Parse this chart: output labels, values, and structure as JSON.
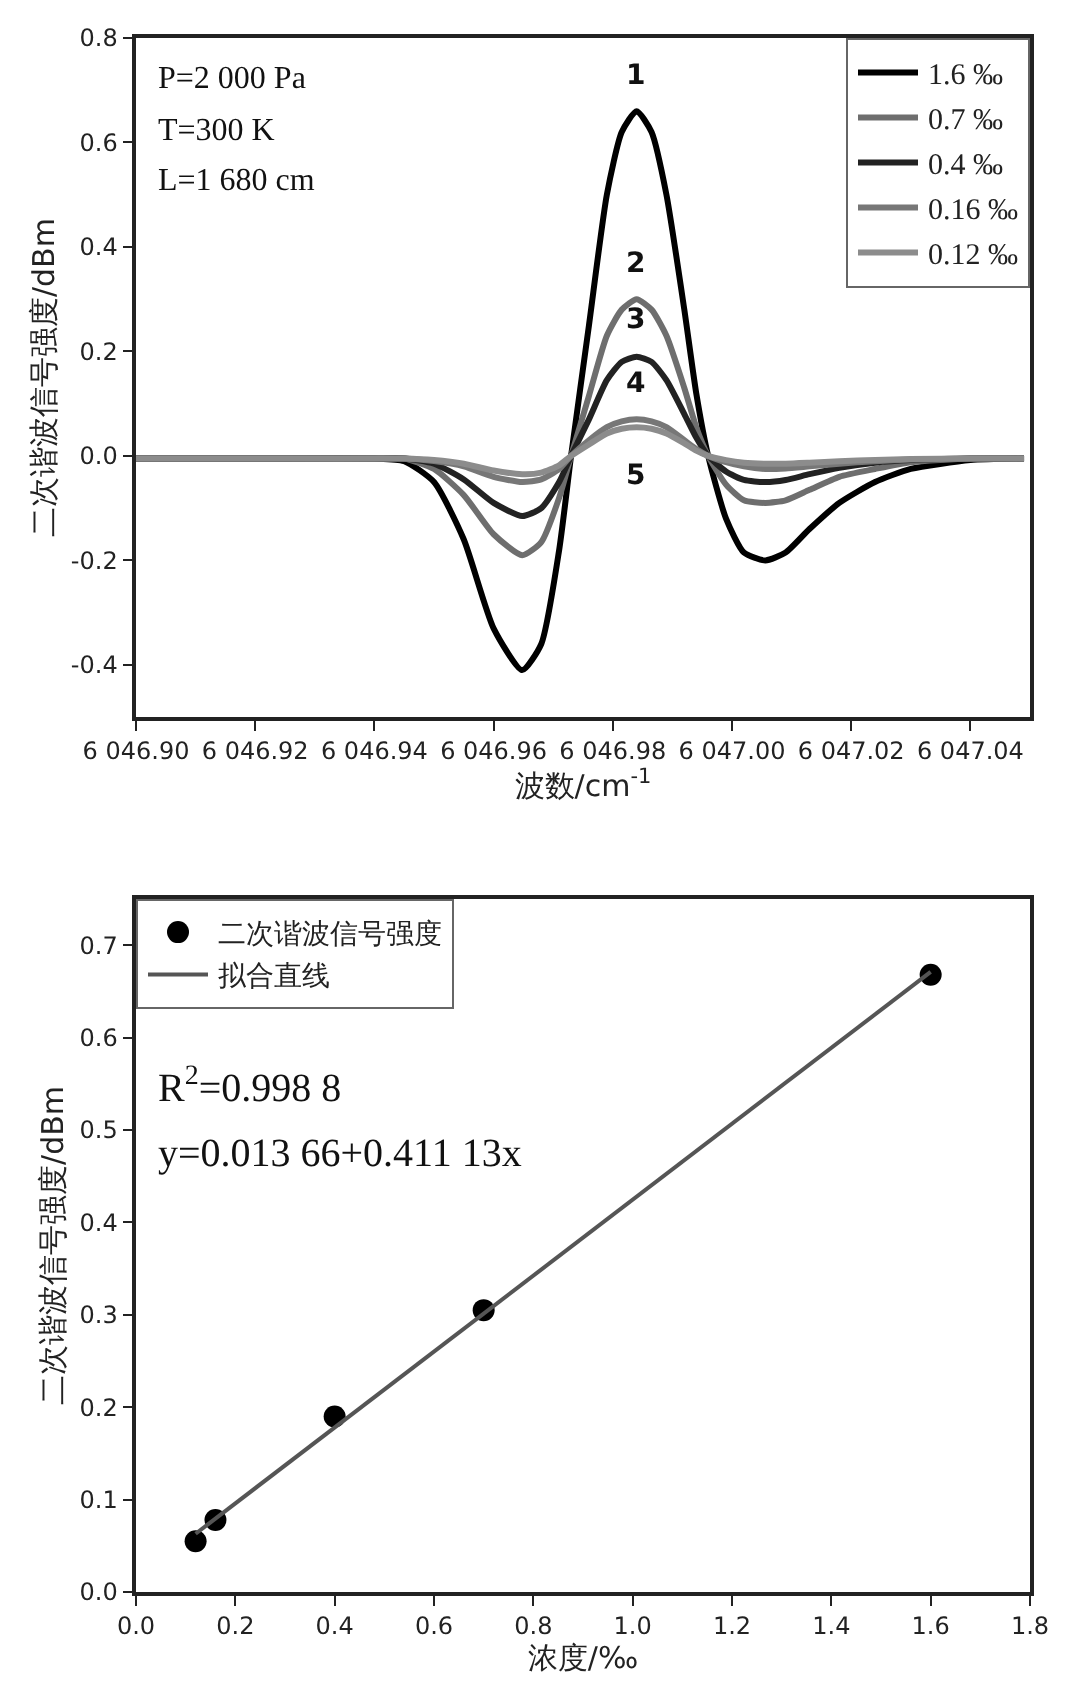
{
  "chart_data": [
    {
      "type": "line",
      "xlabel": "波数/cm$^{-1}$",
      "ylabel": "二次谐波信号强度/dBm",
      "x": [
        6046.9,
        6046.92,
        6046.94,
        6046.945,
        6046.95,
        6046.955,
        6046.96,
        6046.9648,
        6046.968,
        6046.971,
        6046.973,
        6046.976,
        6046.979,
        6046.9815,
        6046.984,
        6046.9865,
        6046.989,
        6046.992,
        6046.994,
        6046.996,
        6046.999,
        6047.002,
        6047.0056,
        6047.009,
        6047.013,
        6047.018,
        6047.024,
        6047.03,
        6047.04,
        6047.049
      ],
      "series": [
        {
          "name": "1.6 ‰",
          "color": "#000000",
          "values": [
            -0.005,
            -0.005,
            -0.005,
            -0.01,
            -0.05,
            -0.16,
            -0.33,
            -0.41,
            -0.36,
            -0.18,
            0,
            0.25,
            0.5,
            0.62,
            0.66,
            0.62,
            0.5,
            0.28,
            0.12,
            0,
            -0.12,
            -0.185,
            -0.2,
            -0.185,
            -0.14,
            -0.09,
            -0.05,
            -0.025,
            -0.008,
            -0.005
          ]
        },
        {
          "name": "0.7 ‰",
          "color": "#6e6e6e",
          "values": [
            -0.005,
            -0.005,
            -0.005,
            -0.005,
            -0.025,
            -0.075,
            -0.15,
            -0.19,
            -0.165,
            -0.08,
            0,
            0.115,
            0.23,
            0.28,
            0.3,
            0.28,
            0.23,
            0.13,
            0.055,
            0,
            -0.055,
            -0.085,
            -0.09,
            -0.085,
            -0.065,
            -0.04,
            -0.025,
            -0.012,
            -0.005,
            -0.005
          ]
        },
        {
          "name": "0.4 ‰",
          "color": "#222222",
          "values": [
            -0.005,
            -0.005,
            -0.005,
            -0.005,
            -0.015,
            -0.045,
            -0.09,
            -0.115,
            -0.1,
            -0.05,
            0,
            0.07,
            0.145,
            0.18,
            0.19,
            0.18,
            0.145,
            0.08,
            0.035,
            0,
            -0.03,
            -0.046,
            -0.05,
            -0.046,
            -0.035,
            -0.023,
            -0.013,
            -0.008,
            -0.005,
            -0.005
          ]
        },
        {
          "name": "0.16 ‰",
          "color": "#777777",
          "values": [
            -0.005,
            -0.005,
            -0.005,
            -0.005,
            -0.01,
            -0.02,
            -0.04,
            -0.05,
            -0.045,
            -0.025,
            0,
            0.03,
            0.055,
            0.066,
            0.07,
            0.066,
            0.055,
            0.03,
            0.013,
            0,
            -0.012,
            -0.02,
            -0.025,
            -0.024,
            -0.02,
            -0.015,
            -0.01,
            -0.007,
            -0.005,
            -0.005
          ]
        },
        {
          "name": "0.12 ‰",
          "color": "#8c8c8c",
          "values": [
            -0.005,
            -0.005,
            -0.005,
            -0.005,
            -0.008,
            -0.015,
            -0.028,
            -0.035,
            -0.032,
            -0.018,
            0,
            0.022,
            0.043,
            0.052,
            0.055,
            0.052,
            0.043,
            0.024,
            0.01,
            0,
            -0.008,
            -0.013,
            -0.015,
            -0.015,
            -0.013,
            -0.01,
            -0.008,
            -0.006,
            -0.005,
            -0.005
          ]
        }
      ],
      "xlim": [
        6046.9,
        6047.05
      ],
      "xticks": [
        {
          "value": 6046.9,
          "label": "6 046.90"
        },
        {
          "value": 6046.92,
          "label": "6 046.92"
        },
        {
          "value": 6046.94,
          "label": "6 046.94"
        },
        {
          "value": 6046.96,
          "label": "6 046.96"
        },
        {
          "value": 6046.98,
          "label": "6 046.98"
        },
        {
          "value": 6047.0,
          "label": "6 047.00"
        },
        {
          "value": 6047.02,
          "label": "6 047.02"
        },
        {
          "value": 6047.04,
          "label": "6 047.04"
        }
      ],
      "ylim": [
        -0.5,
        0.8
      ],
      "yticks": [
        {
          "value": -0.4,
          "label": "-0.4"
        },
        {
          "value": -0.2,
          "label": "-0.2"
        },
        {
          "value": 0,
          "label": "0.0"
        },
        {
          "value": 0.2,
          "label": "0.2"
        },
        {
          "value": 0.4,
          "label": "0.4"
        },
        {
          "value": 0.6,
          "label": "0.6"
        },
        {
          "value": 0.8,
          "label": "0.8"
        }
      ],
      "annotations": [
        "P=2 000 Pa",
        "T=300 K",
        "L=1 680 cm",
        "1",
        "2",
        "3",
        "4",
        "5"
      ],
      "legend": "top right"
    },
    {
      "type": "scatter",
      "xlabel": "浓度/‰",
      "ylabel": "二次谐波信号强度/dBm",
      "series": [
        {
          "name": "二次谐波信号强度",
          "type": "scatter",
          "color": "#000000",
          "x": [
            0.12,
            0.16,
            0.4,
            0.7,
            1.6
          ],
          "values": [
            0.055,
            0.078,
            0.19,
            0.305,
            0.668
          ]
        },
        {
          "name": "拟合直线",
          "type": "line",
          "color": "#555555",
          "x": [
            0.12,
            1.6
          ],
          "values": [
            0.063,
            0.671
          ]
        }
      ],
      "xlim": [
        0,
        1.8
      ],
      "xticks": [
        {
          "value": 0,
          "label": "0.0"
        },
        0.2,
        0.4,
        0.6,
        0.8,
        {
          "value": 1,
          "label": "1.0"
        },
        1.2,
        1.4,
        1.6,
        1.8
      ],
      "ylim": [
        0,
        0.75
      ],
      "yticks": [
        {
          "value": 0,
          "label": "0.0"
        },
        0.1,
        0.2,
        0.3,
        0.4,
        0.5,
        0.6,
        0.7
      ],
      "annotations": [
        "R$^{2}$=0.998 8",
        "y=0.013 66+0.411 13x"
      ],
      "legend": "top left"
    }
  ]
}
